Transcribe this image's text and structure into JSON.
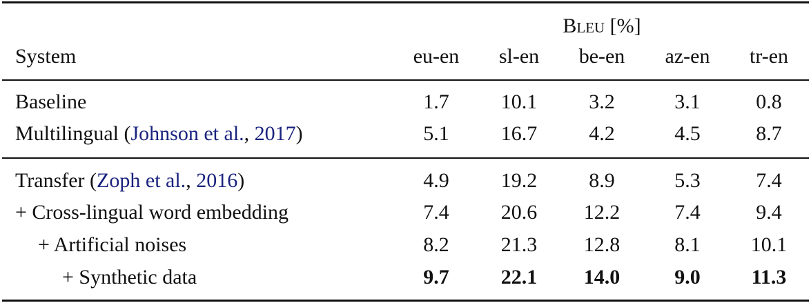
{
  "header": {
    "group": "Bleu [%]",
    "system": "System",
    "columns": [
      "eu-en",
      "sl-en",
      "be-en",
      "az-en",
      "tr-en"
    ]
  },
  "sections": [
    {
      "rows": [
        {
          "label": [
            {
              "text": "Baseline"
            }
          ],
          "values": [
            "1.7",
            "10.1",
            "3.2",
            "3.1",
            "0.8"
          ]
        },
        {
          "label": [
            {
              "text": "Multilingual ("
            },
            {
              "text": "Johnson et al.",
              "cite": true
            },
            {
              "text": ", "
            },
            {
              "text": "2017",
              "cite": true
            },
            {
              "text": ")"
            }
          ],
          "values": [
            "5.1",
            "16.7",
            "4.2",
            "4.5",
            "8.7"
          ]
        }
      ]
    },
    {
      "rows": [
        {
          "label": [
            {
              "text": "Transfer ("
            },
            {
              "text": "Zoph et al.",
              "cite": true
            },
            {
              "text": ", "
            },
            {
              "text": "2016",
              "cite": true
            },
            {
              "text": ")"
            }
          ],
          "values": [
            "4.9",
            "19.2",
            "8.9",
            "5.3",
            "7.4"
          ]
        },
        {
          "label": [
            {
              "text": "+ Cross-lingual word embedding"
            }
          ],
          "values": [
            "7.4",
            "20.6",
            "12.2",
            "7.4",
            "9.4"
          ]
        },
        {
          "label": [
            {
              "text": "+ Artificial noises"
            }
          ],
          "values": [
            "8.2",
            "21.3",
            "12.8",
            "8.1",
            "10.1"
          ]
        },
        {
          "label": [
            {
              "text": "+ Synthetic data"
            }
          ],
          "values": [
            "9.7",
            "22.1",
            "14.0",
            "9.0",
            "11.3"
          ],
          "bold": true
        }
      ]
    }
  ]
}
